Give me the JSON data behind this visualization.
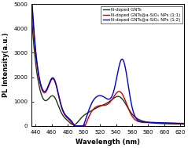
{
  "title": "",
  "xlabel": "Wavelength (nm)",
  "ylabel": "PL Intensity(a.u.)",
  "xlim": [
    435,
    625
  ],
  "ylim": [
    0,
    5000
  ],
  "yticks": [
    0,
    1000,
    2000,
    3000,
    4000,
    5000
  ],
  "xticks": [
    440,
    460,
    480,
    500,
    520,
    540,
    560,
    580,
    600,
    620
  ],
  "legend": [
    {
      "label": "N-doped GNTs",
      "color": "#1a3a1a"
    },
    {
      "label": "N-doped GNTs@a-SiOₓ NPs (1:1)",
      "color": "#cc0000"
    },
    {
      "label": "N-doped GNTs@a-SiOₓ NPs (1:2)",
      "color": "#0000cc"
    }
  ],
  "background": "#ffffff",
  "linewidth": 1.0
}
